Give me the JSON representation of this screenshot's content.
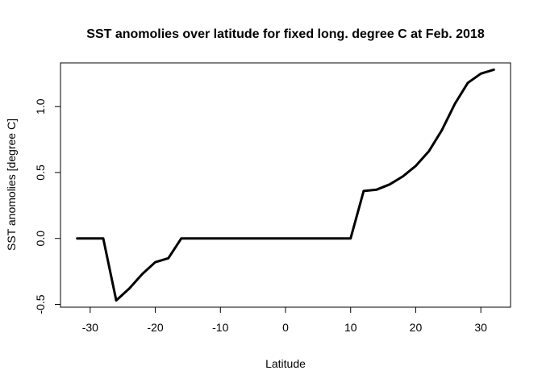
{
  "chart_data": {
    "type": "line",
    "title": "SST anomolies over latitude for fixed long. degree C at Feb. 2018",
    "xlabel": "Latitude",
    "ylabel": "SST anomolies [degree C]",
    "xlim": [
      -34.56,
      34.56
    ],
    "ylim": [
      -0.5215,
      1.3315
    ],
    "x_ticks": [
      -30,
      -20,
      -10,
      0,
      10,
      20,
      30
    ],
    "x_tick_labels": [
      "-30",
      "-20",
      "-10",
      "0",
      "10",
      "20",
      "30"
    ],
    "y_ticks": [
      -0.5,
      0.0,
      0.5,
      1.0
    ],
    "y_tick_labels": [
      "-0.5",
      "0.0",
      "0.5",
      "1.0"
    ],
    "grid": false,
    "legend": "none",
    "series": [
      {
        "x": [
          -32,
          -30,
          -28,
          -26,
          -24,
          -22,
          -20,
          -18,
          -16,
          -14,
          -12,
          -10,
          -8,
          -6,
          -4,
          -2,
          0,
          2,
          4,
          6,
          8,
          10,
          12,
          14,
          16,
          18,
          20,
          22,
          24,
          26,
          28,
          30,
          32
        ],
        "values": [
          0.0,
          0.0,
          0.0,
          -0.47,
          -0.38,
          -0.27,
          -0.18,
          -0.15,
          0.0,
          0.0,
          0.0,
          0.0,
          0.0,
          0.0,
          0.0,
          0.0,
          0.0,
          0.0,
          0.0,
          0.0,
          0.0,
          0.0,
          0.36,
          0.37,
          0.41,
          0.47,
          0.55,
          0.66,
          0.82,
          1.02,
          1.18,
          1.25,
          1.28
        ],
        "color": "#000000"
      }
    ]
  }
}
